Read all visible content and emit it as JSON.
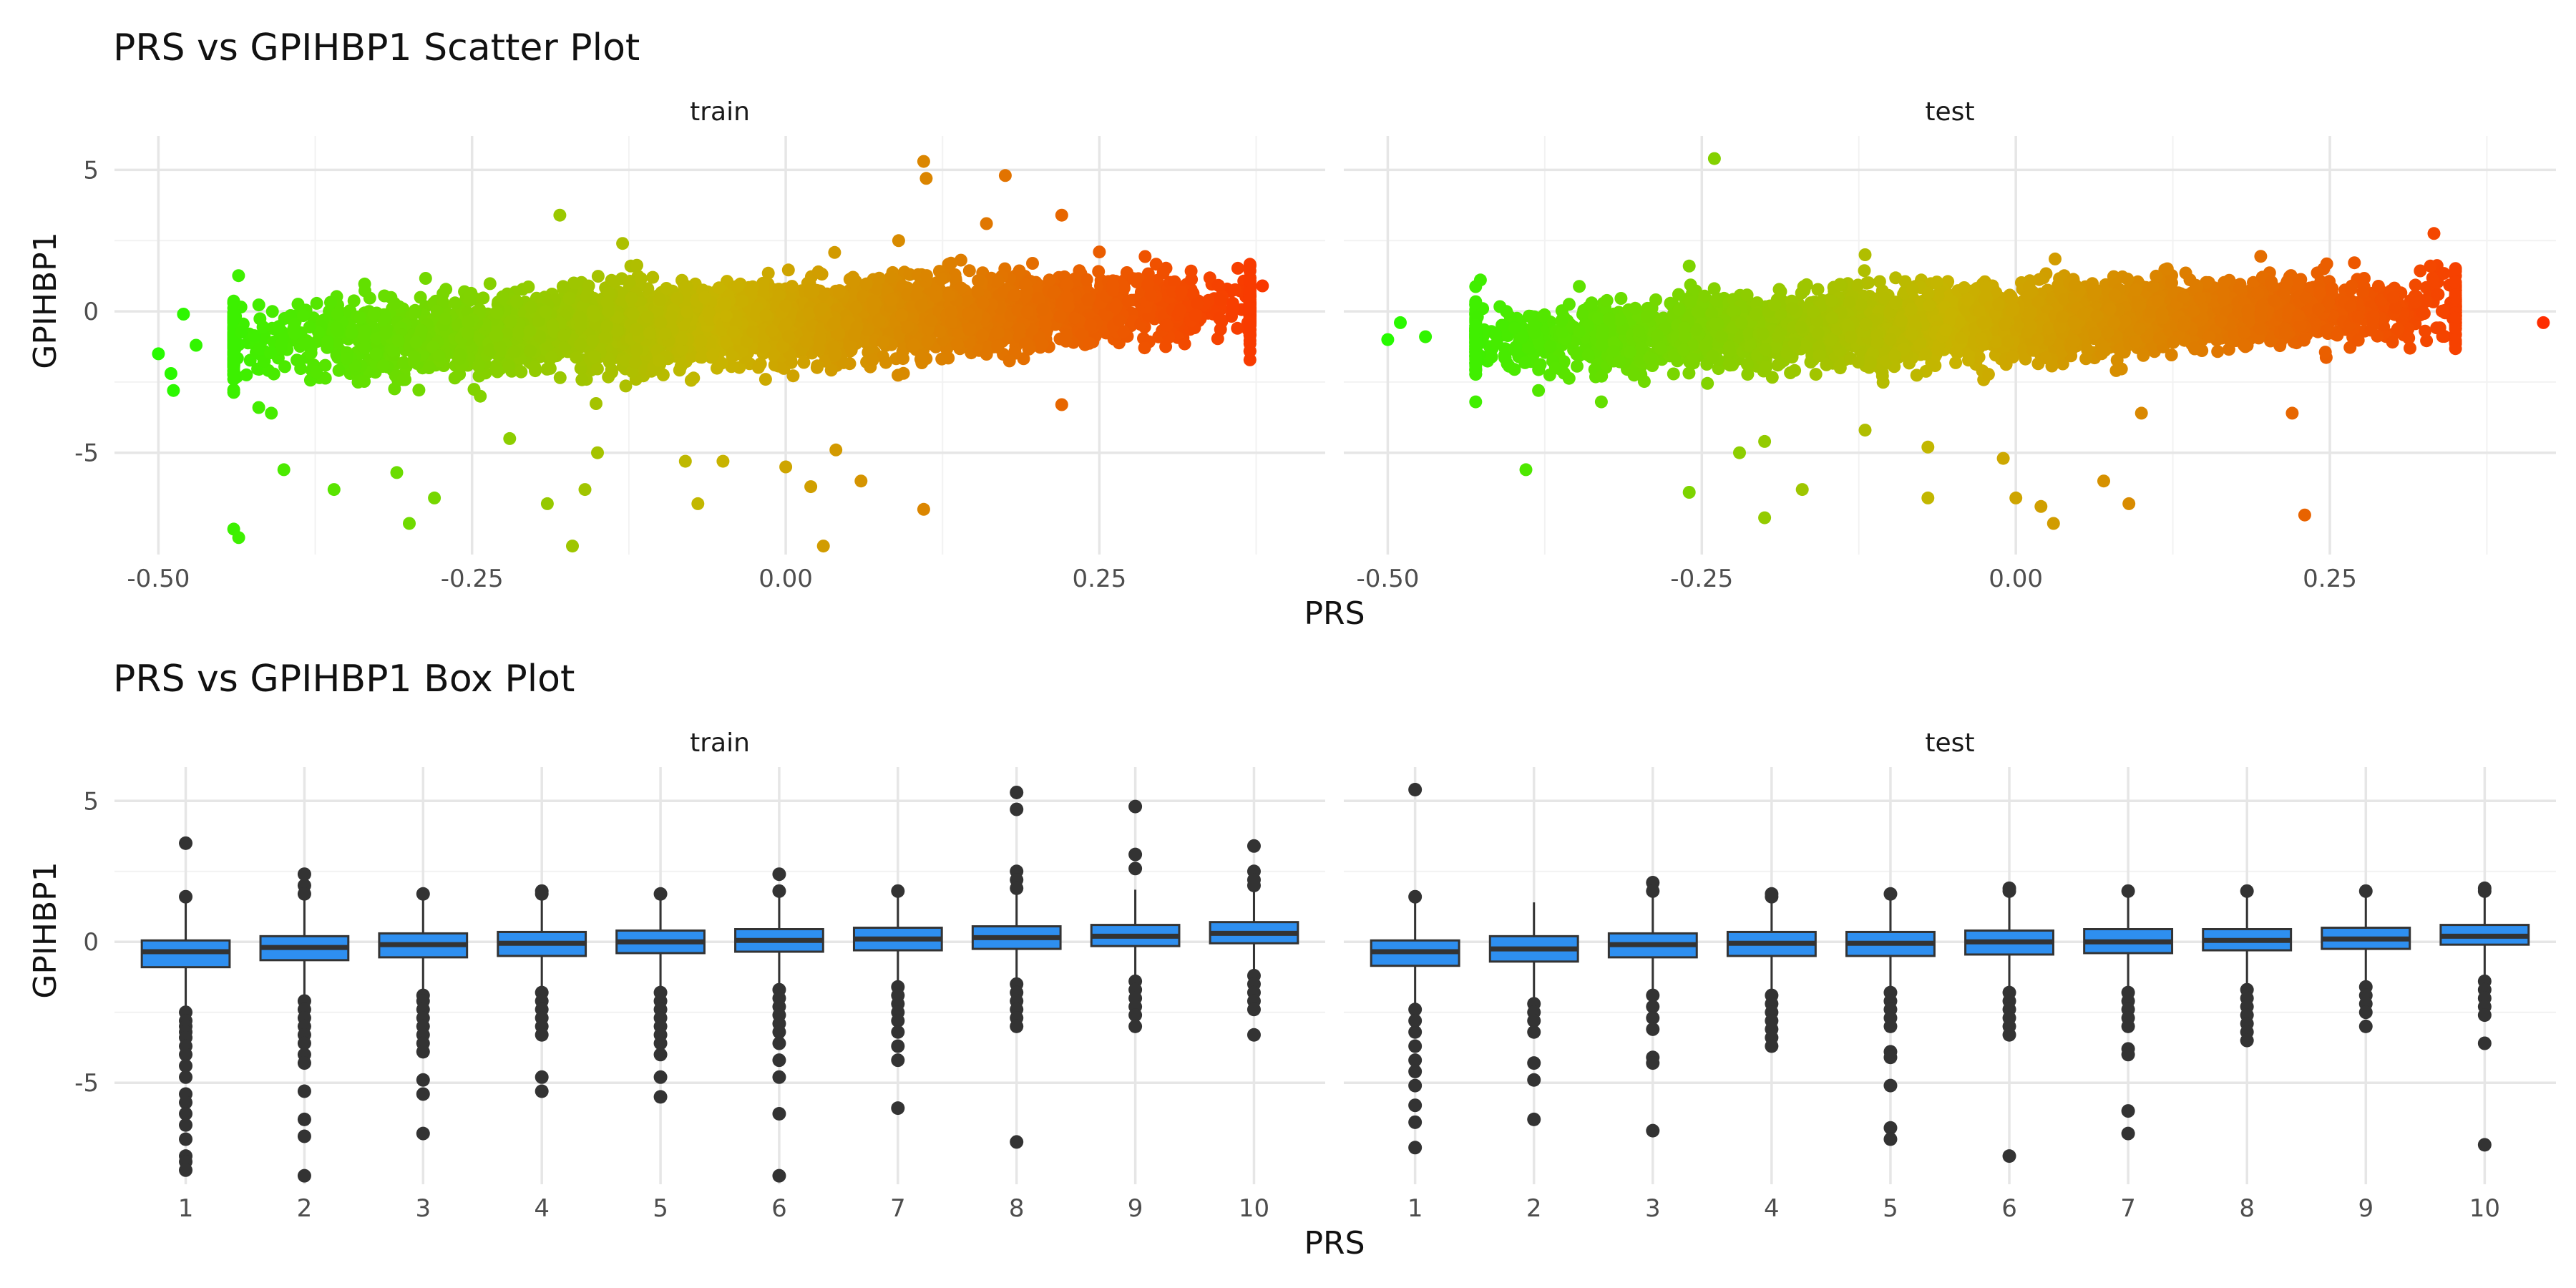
{
  "chart_data": [
    {
      "type": "scatter",
      "title": "PRS vs GPIHBP1 Scatter Plot",
      "xlabel": "PRS",
      "ylabel": "GPIHBP1",
      "facets": [
        "train",
        "test"
      ],
      "xlim": [
        -0.535,
        0.43
      ],
      "ylim": [
        -8.6,
        6.2
      ],
      "x_ticks": [
        -0.5,
        -0.25,
        0.0,
        0.25
      ],
      "x_tick_labels": [
        "-0.50",
        "-0.25",
        "0.00",
        "0.25"
      ],
      "y_ticks": [
        -5,
        0,
        5
      ],
      "y_tick_labels": [
        "-5",
        "0",
        "5"
      ],
      "grid": true,
      "color_scale": {
        "low": "#1aff00",
        "mid": "#c8b400",
        "high": "#ff2a00"
      },
      "bulk": {
        "train": {
          "x_range": [
            -0.44,
            0.37
          ],
          "mean_slope": 1.7,
          "spread": 1.1
        },
        "test": {
          "x_range": [
            -0.43,
            0.35
          ],
          "mean_slope": 1.6,
          "spread": 1.0
        }
      },
      "outliers": {
        "train": [
          [
            -0.5,
            -1.5
          ],
          [
            -0.49,
            -2.2
          ],
          [
            -0.488,
            -2.8
          ],
          [
            -0.48,
            -0.1
          ],
          [
            -0.47,
            -1.2
          ],
          [
            -0.44,
            -7.7
          ],
          [
            -0.436,
            -8.0
          ],
          [
            -0.42,
            -3.4
          ],
          [
            -0.41,
            -3.6
          ],
          [
            -0.4,
            -5.6
          ],
          [
            -0.36,
            -6.3
          ],
          [
            -0.31,
            -5.7
          ],
          [
            -0.3,
            -7.5
          ],
          [
            -0.28,
            -6.6
          ],
          [
            -0.22,
            -4.5
          ],
          [
            -0.19,
            -6.8
          ],
          [
            -0.18,
            3.4
          ],
          [
            -0.17,
            -8.3
          ],
          [
            -0.16,
            -6.3
          ],
          [
            -0.15,
            -5.0
          ],
          [
            -0.13,
            2.4
          ],
          [
            -0.08,
            -5.3
          ],
          [
            -0.07,
            -6.8
          ],
          [
            -0.05,
            -5.3
          ],
          [
            0.0,
            -5.5
          ],
          [
            0.02,
            -6.2
          ],
          [
            0.03,
            -8.3
          ],
          [
            0.04,
            -4.9
          ],
          [
            0.06,
            -6.0
          ],
          [
            0.09,
            2.5
          ],
          [
            0.11,
            5.3
          ],
          [
            0.112,
            4.7
          ],
          [
            0.11,
            -7.0
          ],
          [
            0.16,
            3.1
          ],
          [
            0.175,
            4.8
          ],
          [
            0.22,
            3.4
          ],
          [
            0.22,
            -3.3
          ],
          [
            0.25,
            2.1
          ],
          [
            0.38,
            0.9
          ],
          [
            0.36,
            -0.6
          ]
        ],
        "test": [
          [
            -0.5,
            -1.0
          ],
          [
            -0.49,
            -0.4
          ],
          [
            -0.47,
            -0.9
          ],
          [
            -0.43,
            -3.2
          ],
          [
            -0.39,
            -5.6
          ],
          [
            -0.38,
            -2.8
          ],
          [
            -0.33,
            -3.2
          ],
          [
            -0.26,
            -6.4
          ],
          [
            -0.24,
            5.4
          ],
          [
            -0.26,
            1.6
          ],
          [
            -0.22,
            -5.0
          ],
          [
            -0.2,
            -7.3
          ],
          [
            -0.2,
            -4.6
          ],
          [
            -0.17,
            -6.3
          ],
          [
            -0.12,
            2.0
          ],
          [
            -0.12,
            -4.2
          ],
          [
            -0.07,
            -6.6
          ],
          [
            -0.07,
            -4.8
          ],
          [
            -0.01,
            -5.2
          ],
          [
            0.0,
            -6.6
          ],
          [
            0.02,
            -6.9
          ],
          [
            0.03,
            -7.5
          ],
          [
            0.07,
            -6.0
          ],
          [
            0.09,
            -6.8
          ],
          [
            0.1,
            -3.6
          ],
          [
            0.23,
            -7.2
          ],
          [
            0.22,
            -3.6
          ],
          [
            0.33,
            1.6
          ],
          [
            0.34,
            0.0
          ],
          [
            0.35,
            -0.6
          ],
          [
            0.42,
            -0.4
          ]
        ]
      }
    },
    {
      "type": "box",
      "title": "PRS vs GPIHBP1 Box Plot",
      "xlabel": "PRS",
      "ylabel": "GPIHBP1",
      "facets": [
        "train",
        "test"
      ],
      "categories": [
        "1",
        "2",
        "3",
        "4",
        "5",
        "6",
        "7",
        "8",
        "9",
        "10"
      ],
      "ylim": [
        -8.6,
        6.2
      ],
      "y_ticks": [
        -5,
        0,
        5
      ],
      "y_tick_labels": [
        "-5",
        "0",
        "5"
      ],
      "grid": true,
      "box_color": "#2e8ff0",
      "series": [
        {
          "name": "train",
          "boxes": [
            {
              "q1": -0.9,
              "median": -0.35,
              "q3": 0.05,
              "lower": -2.3,
              "upper": 1.45,
              "outliers": [
                3.5,
                1.6,
                -2.5,
                -2.8,
                -3.0,
                -3.2,
                -3.4,
                -3.7,
                -4.0,
                -4.4,
                -4.8,
                -5.4,
                -5.7,
                -6.1,
                -6.5,
                -7.0,
                -7.6,
                -7.8,
                -8.1
              ]
            },
            {
              "q1": -0.65,
              "median": -0.2,
              "q3": 0.2,
              "lower": -2.0,
              "upper": 1.5,
              "outliers": [
                2.4,
                2.0,
                1.7,
                -2.1,
                -2.4,
                -2.7,
                -3.0,
                -3.3,
                -3.6,
                -4.0,
                -4.3,
                -5.3,
                -6.3,
                -6.9,
                -8.3
              ]
            },
            {
              "q1": -0.55,
              "median": -0.1,
              "q3": 0.3,
              "lower": -1.8,
              "upper": 1.6,
              "outliers": [
                1.7,
                -1.9,
                -2.1,
                -2.4,
                -2.7,
                -3.0,
                -3.3,
                -3.6,
                -3.9,
                -4.9,
                -5.4,
                -6.8
              ]
            },
            {
              "q1": -0.5,
              "median": -0.05,
              "q3": 0.35,
              "lower": -1.7,
              "upper": 1.6,
              "outliers": [
                1.8,
                1.7,
                -1.8,
                -2.1,
                -2.4,
                -2.7,
                -3.0,
                -3.3,
                -4.8,
                -5.3
              ]
            },
            {
              "q1": -0.4,
              "median": 0.0,
              "q3": 0.4,
              "lower": -1.6,
              "upper": 1.65,
              "outliers": [
                1.7,
                -1.8,
                -2.1,
                -2.4,
                -2.7,
                -3.0,
                -3.3,
                -3.6,
                -4.0,
                -4.8,
                -5.5
              ]
            },
            {
              "q1": -0.35,
              "median": 0.05,
              "q3": 0.45,
              "lower": -1.6,
              "upper": 1.7,
              "outliers": [
                2.4,
                1.8,
                -1.7,
                -2.0,
                -2.3,
                -2.6,
                -2.9,
                -3.2,
                -3.6,
                -4.2,
                -4.8,
                -6.1,
                -8.3
              ]
            },
            {
              "q1": -0.3,
              "median": 0.1,
              "q3": 0.5,
              "lower": -1.5,
              "upper": 1.75,
              "outliers": [
                1.8,
                -1.6,
                -1.9,
                -2.2,
                -2.5,
                -2.8,
                -3.2,
                -3.7,
                -4.2,
                -5.9
              ]
            },
            {
              "q1": -0.25,
              "median": 0.15,
              "q3": 0.55,
              "lower": -1.4,
              "upper": 1.8,
              "outliers": [
                5.3,
                4.7,
                2.5,
                2.2,
                1.9,
                -1.5,
                -1.8,
                -2.1,
                -2.4,
                -2.7,
                -3.0,
                -7.1
              ]
            },
            {
              "q1": -0.15,
              "median": 0.2,
              "q3": 0.6,
              "lower": -1.3,
              "upper": 1.85,
              "outliers": [
                4.8,
                3.1,
                2.6,
                -1.4,
                -1.7,
                -2.0,
                -2.3,
                -2.6,
                -3.0
              ]
            },
            {
              "q1": -0.05,
              "median": 0.3,
              "q3": 0.7,
              "lower": -1.1,
              "upper": 1.9,
              "outliers": [
                3.4,
                2.5,
                2.2,
                2.0,
                -1.2,
                -1.5,
                -1.8,
                -2.1,
                -2.4,
                -3.3
              ]
            }
          ]
        },
        {
          "name": "test",
          "boxes": [
            {
              "q1": -0.85,
              "median": -0.35,
              "q3": 0.05,
              "lower": -2.2,
              "upper": 1.5,
              "outliers": [
                5.4,
                1.6,
                -2.4,
                -2.8,
                -3.2,
                -3.7,
                -4.2,
                -4.6,
                -5.1,
                -5.8,
                -6.4,
                -7.3
              ]
            },
            {
              "q1": -0.7,
              "median": -0.25,
              "q3": 0.2,
              "lower": -2.0,
              "upper": 1.4,
              "outliers": [
                -2.2,
                -2.5,
                -2.8,
                -3.2,
                -4.3,
                -4.9,
                -6.3
              ]
            },
            {
              "q1": -0.55,
              "median": -0.1,
              "q3": 0.3,
              "lower": -1.8,
              "upper": 1.6,
              "outliers": [
                2.1,
                1.8,
                -1.9,
                -2.3,
                -2.7,
                -3.1,
                -4.1,
                -4.3,
                -6.7
              ]
            },
            {
              "q1": -0.5,
              "median": -0.05,
              "q3": 0.35,
              "lower": -1.8,
              "upper": 1.6,
              "outliers": [
                1.7,
                1.6,
                -1.9,
                -2.2,
                -2.5,
                -2.8,
                -3.1,
                -3.4,
                -3.7
              ]
            },
            {
              "q1": -0.5,
              "median": -0.05,
              "q3": 0.35,
              "lower": -1.7,
              "upper": 1.6,
              "outliers": [
                1.7,
                -1.8,
                -2.1,
                -2.4,
                -2.7,
                -3.0,
                -3.9,
                -4.1,
                -5.1,
                -6.6,
                -7.0
              ]
            },
            {
              "q1": -0.45,
              "median": 0.0,
              "q3": 0.4,
              "lower": -1.7,
              "upper": 1.7,
              "outliers": [
                1.9,
                1.8,
                -1.8,
                -2.1,
                -2.4,
                -2.7,
                -3.0,
                -3.3,
                -7.6
              ]
            },
            {
              "q1": -0.4,
              "median": 0.0,
              "q3": 0.45,
              "lower": -1.7,
              "upper": 1.7,
              "outliers": [
                1.8,
                -1.8,
                -2.1,
                -2.4,
                -2.7,
                -3.0,
                -3.8,
                -4.0,
                -6.0,
                -6.8
              ]
            },
            {
              "q1": -0.3,
              "median": 0.05,
              "q3": 0.45,
              "lower": -1.6,
              "upper": 1.75,
              "outliers": [
                1.8,
                -1.7,
                -2.0,
                -2.3,
                -2.6,
                -2.9,
                -3.2,
                -3.5
              ]
            },
            {
              "q1": -0.25,
              "median": 0.1,
              "q3": 0.5,
              "lower": -1.5,
              "upper": 1.8,
              "outliers": [
                1.8,
                -1.6,
                -1.9,
                -2.2,
                -2.5,
                -3.0
              ]
            },
            {
              "q1": -0.1,
              "median": 0.2,
              "q3": 0.6,
              "lower": -1.3,
              "upper": 1.85,
              "outliers": [
                1.9,
                1.8,
                -1.4,
                -1.7,
                -2.0,
                -2.3,
                -2.6,
                -3.6,
                -7.2
              ]
            }
          ]
        }
      ]
    }
  ]
}
